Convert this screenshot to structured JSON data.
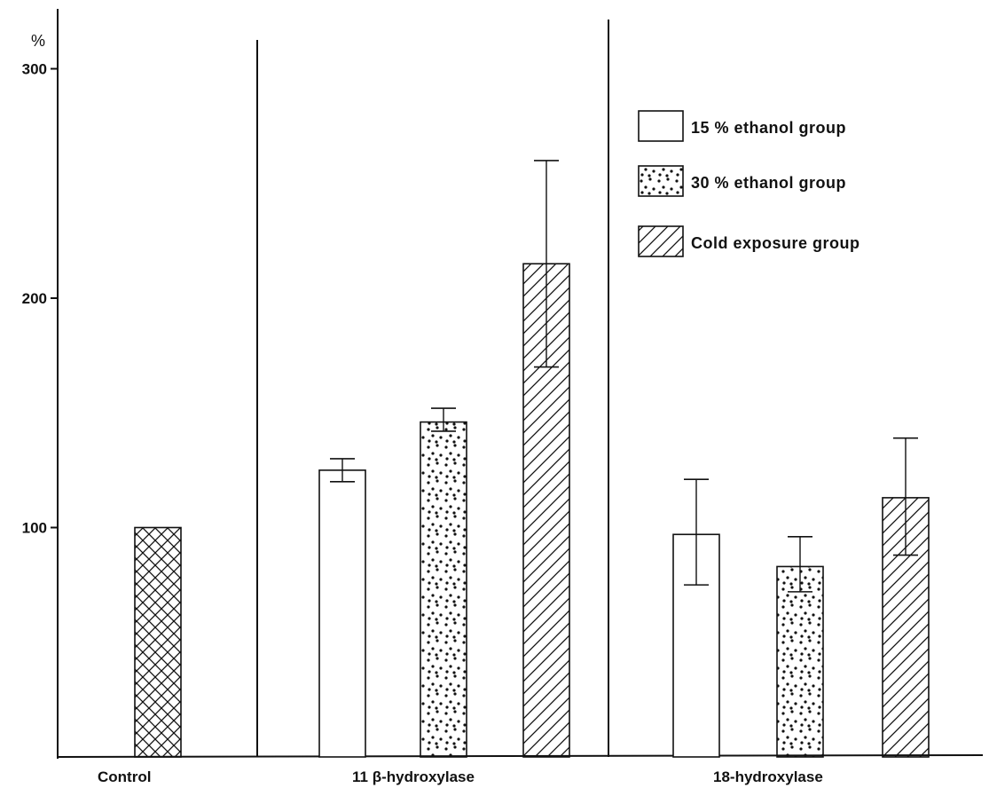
{
  "chart_data": {
    "type": "bar",
    "ylabel": "%",
    "ylim": [
      0,
      316
    ],
    "yticks": [
      100,
      200,
      300
    ],
    "groups": [
      {
        "label": "Control",
        "bars": [
          {
            "series": "Control",
            "value": 100,
            "error": null
          }
        ]
      },
      {
        "label": "11 β-hydroxylase",
        "bars": [
          {
            "series": "15% ethanol group",
            "value": 125,
            "error": [
              120,
              130
            ]
          },
          {
            "series": "30% ethanol group",
            "value": 146,
            "error": [
              142,
              152
            ]
          },
          {
            "series": "Cold exposure group",
            "value": 215,
            "error": [
              170,
              260
            ]
          }
        ]
      },
      {
        "label": "18-hydroxylase",
        "bars": [
          {
            "series": "15% ethanol group",
            "value": 97,
            "error": [
              75,
              121
            ]
          },
          {
            "series": "30% ethanol group",
            "value": 83,
            "error": [
              72,
              96
            ]
          },
          {
            "series": "Cold exposure group",
            "value": 113,
            "error": [
              88,
              139
            ]
          }
        ]
      }
    ],
    "legend": {
      "placement": "top-right",
      "entries": [
        {
          "label": "15 % ethanol group",
          "pattern": "plain"
        },
        {
          "label": "30 % ethanol group",
          "pattern": "dots"
        },
        {
          "label": "Cold exposure group",
          "pattern": "hatch"
        }
      ]
    },
    "colors": {
      "ink": "#111111",
      "background": "#ffffff"
    }
  }
}
